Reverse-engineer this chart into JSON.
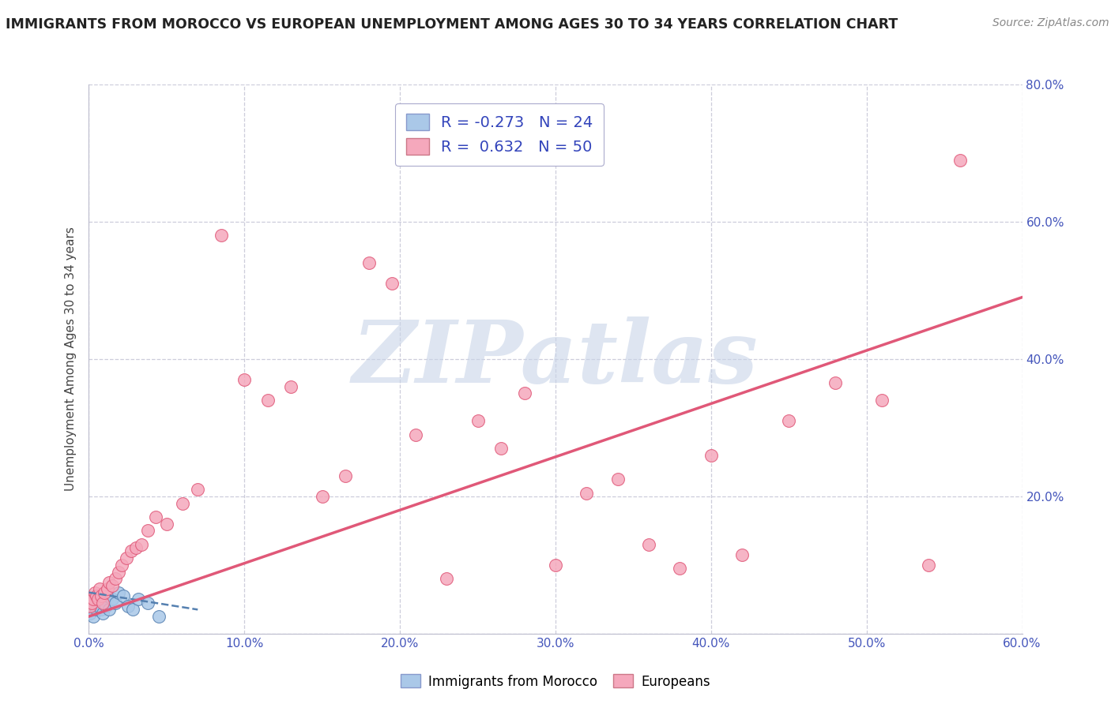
{
  "title": "IMMIGRANTS FROM MOROCCO VS EUROPEAN UNEMPLOYMENT AMONG AGES 30 TO 34 YEARS CORRELATION CHART",
  "source": "Source: ZipAtlas.com",
  "ylabel": "Unemployment Among Ages 30 to 34 years",
  "xlim": [
    0.0,
    0.6
  ],
  "ylim": [
    0.0,
    0.8
  ],
  "xticks": [
    0.0,
    0.1,
    0.2,
    0.3,
    0.4,
    0.5,
    0.6
  ],
  "yticks": [
    0.0,
    0.2,
    0.4,
    0.6,
    0.8
  ],
  "xticklabels": [
    "0.0%",
    "10.0%",
    "20.0%",
    "30.0%",
    "40.0%",
    "50.0%",
    "60.0%"
  ],
  "yticklabels_right": [
    "",
    "20.0%",
    "40.0%",
    "60.0%",
    "80.0%"
  ],
  "legend1_label": "Immigrants from Morocco",
  "legend2_label": "Europeans",
  "R1": -0.273,
  "N1": 24,
  "R2": 0.632,
  "N2": 50,
  "color_blue": "#aac8e8",
  "color_pink": "#f5a8bc",
  "color_blue_line": "#5580b0",
  "color_pink_line": "#e05878",
  "watermark": "ZIPatlas",
  "watermark_color": "#c8d4e8",
  "blue_points_x": [
    0.001,
    0.002,
    0.003,
    0.004,
    0.005,
    0.005,
    0.006,
    0.007,
    0.007,
    0.008,
    0.009,
    0.01,
    0.011,
    0.012,
    0.013,
    0.015,
    0.017,
    0.019,
    0.022,
    0.025,
    0.028,
    0.032,
    0.038,
    0.045
  ],
  "blue_points_y": [
    0.03,
    0.035,
    0.025,
    0.04,
    0.035,
    0.05,
    0.045,
    0.04,
    0.055,
    0.035,
    0.03,
    0.045,
    0.04,
    0.055,
    0.035,
    0.05,
    0.045,
    0.06,
    0.055,
    0.04,
    0.035,
    0.05,
    0.045,
    0.025
  ],
  "pink_points_x": [
    0.001,
    0.002,
    0.003,
    0.004,
    0.005,
    0.006,
    0.007,
    0.008,
    0.009,
    0.01,
    0.012,
    0.013,
    0.015,
    0.017,
    0.019,
    0.021,
    0.024,
    0.027,
    0.03,
    0.034,
    0.038,
    0.043,
    0.05,
    0.06,
    0.07,
    0.085,
    0.1,
    0.115,
    0.13,
    0.15,
    0.165,
    0.18,
    0.195,
    0.21,
    0.23,
    0.25,
    0.265,
    0.28,
    0.3,
    0.32,
    0.34,
    0.36,
    0.38,
    0.4,
    0.42,
    0.45,
    0.48,
    0.51,
    0.54,
    0.56
  ],
  "pink_points_y": [
    0.04,
    0.045,
    0.05,
    0.06,
    0.055,
    0.05,
    0.065,
    0.055,
    0.045,
    0.06,
    0.065,
    0.075,
    0.07,
    0.08,
    0.09,
    0.1,
    0.11,
    0.12,
    0.125,
    0.13,
    0.15,
    0.17,
    0.16,
    0.19,
    0.21,
    0.58,
    0.37,
    0.34,
    0.36,
    0.2,
    0.23,
    0.54,
    0.51,
    0.29,
    0.08,
    0.31,
    0.27,
    0.35,
    0.1,
    0.205,
    0.225,
    0.13,
    0.095,
    0.26,
    0.115,
    0.31,
    0.365,
    0.34,
    0.1,
    0.69
  ],
  "pink_trendline_x": [
    0.0,
    0.6
  ],
  "pink_trendline_y": [
    0.025,
    0.49
  ],
  "blue_trendline_x": [
    0.0,
    0.07
  ],
  "blue_trendline_y": [
    0.06,
    0.035
  ]
}
